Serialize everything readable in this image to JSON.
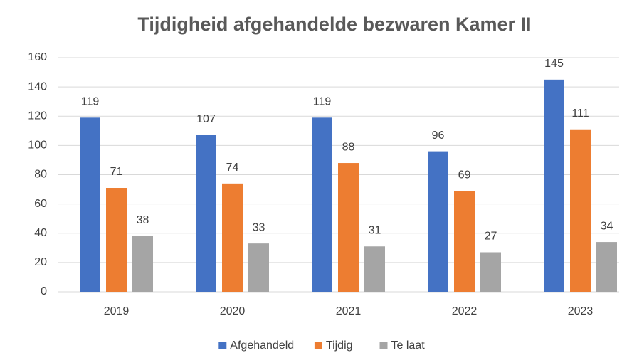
{
  "chart_data": {
    "type": "bar",
    "title": "Tijdigheid afgehandelde bezwaren Kamer II",
    "categories": [
      "2019",
      "2020",
      "2021",
      "2022",
      "2023"
    ],
    "series": [
      {
        "name": "Afgehandeld",
        "color": "#4472c4",
        "values": [
          119,
          107,
          119,
          96,
          145
        ]
      },
      {
        "name": "Tijdig",
        "color": "#ed7d31",
        "values": [
          71,
          74,
          88,
          69,
          111
        ]
      },
      {
        "name": "Te laat",
        "color": "#a5a5a5",
        "values": [
          38,
          33,
          31,
          27,
          34
        ]
      }
    ],
    "ylim": [
      0,
      160
    ],
    "yticks": [
      0,
      20,
      40,
      60,
      80,
      100,
      120,
      140,
      160
    ],
    "grid": true,
    "legend": "bottom"
  }
}
